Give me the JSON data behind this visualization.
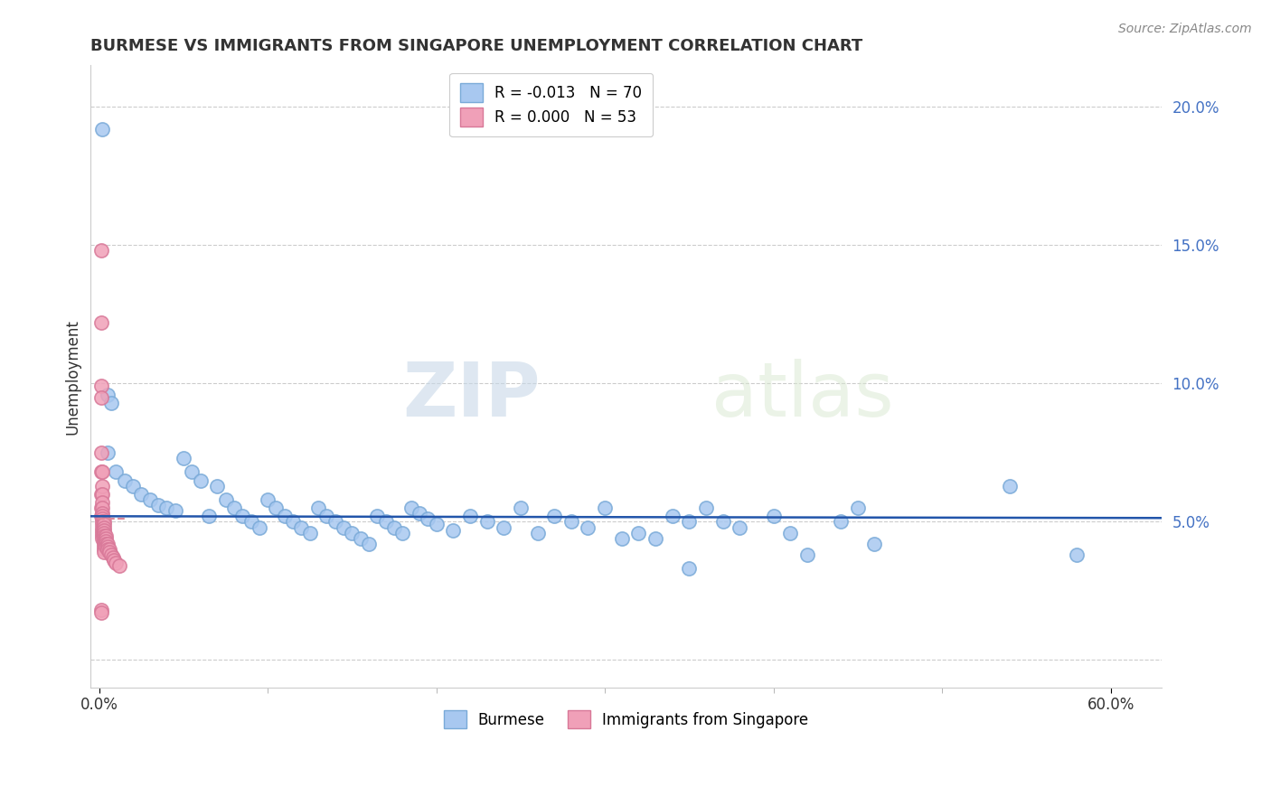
{
  "title": "BURMESE VS IMMIGRANTS FROM SINGAPORE UNEMPLOYMENT CORRELATION CHART",
  "source_text": "Source: ZipAtlas.com",
  "ylabel": "Unemployment",
  "y_ticks": [
    0.0,
    0.05,
    0.1,
    0.15,
    0.2
  ],
  "y_tick_labels": [
    "",
    "5.0%",
    "10.0%",
    "15.0%",
    "20.0%"
  ],
  "xlim": [
    -0.005,
    0.63
  ],
  "ylim": [
    -0.01,
    0.215
  ],
  "blue_color": "#A8C8F0",
  "blue_edge_color": "#7AAAD8",
  "pink_color": "#F0A0B8",
  "pink_edge_color": "#D87898",
  "blue_line_color": "#2255AA",
  "pink_line_color": "#DD8899",
  "legend_blue_label": "R = -0.013   N = 70",
  "legend_pink_label": "R = 0.000   N = 53",
  "legend_burmese": "Burmese",
  "legend_singapore": "Immigrants from Singapore",
  "watermark_zip": "ZIP",
  "watermark_atlas": "atlas",
  "blue_points": [
    [
      0.002,
      0.192
    ],
    [
      0.005,
      0.096
    ],
    [
      0.007,
      0.093
    ],
    [
      0.005,
      0.075
    ],
    [
      0.01,
      0.068
    ],
    [
      0.015,
      0.065
    ],
    [
      0.02,
      0.063
    ],
    [
      0.025,
      0.06
    ],
    [
      0.03,
      0.058
    ],
    [
      0.035,
      0.056
    ],
    [
      0.04,
      0.055
    ],
    [
      0.045,
      0.054
    ],
    [
      0.05,
      0.073
    ],
    [
      0.055,
      0.068
    ],
    [
      0.06,
      0.065
    ],
    [
      0.065,
      0.052
    ],
    [
      0.07,
      0.063
    ],
    [
      0.075,
      0.058
    ],
    [
      0.08,
      0.055
    ],
    [
      0.085,
      0.052
    ],
    [
      0.09,
      0.05
    ],
    [
      0.095,
      0.048
    ],
    [
      0.1,
      0.058
    ],
    [
      0.105,
      0.055
    ],
    [
      0.11,
      0.052
    ],
    [
      0.115,
      0.05
    ],
    [
      0.12,
      0.048
    ],
    [
      0.125,
      0.046
    ],
    [
      0.13,
      0.055
    ],
    [
      0.135,
      0.052
    ],
    [
      0.14,
      0.05
    ],
    [
      0.145,
      0.048
    ],
    [
      0.15,
      0.046
    ],
    [
      0.155,
      0.044
    ],
    [
      0.16,
      0.042
    ],
    [
      0.165,
      0.052
    ],
    [
      0.17,
      0.05
    ],
    [
      0.175,
      0.048
    ],
    [
      0.18,
      0.046
    ],
    [
      0.185,
      0.055
    ],
    [
      0.19,
      0.053
    ],
    [
      0.195,
      0.051
    ],
    [
      0.2,
      0.049
    ],
    [
      0.21,
      0.047
    ],
    [
      0.22,
      0.052
    ],
    [
      0.23,
      0.05
    ],
    [
      0.24,
      0.048
    ],
    [
      0.25,
      0.055
    ],
    [
      0.26,
      0.046
    ],
    [
      0.27,
      0.052
    ],
    [
      0.28,
      0.05
    ],
    [
      0.29,
      0.048
    ],
    [
      0.3,
      0.055
    ],
    [
      0.31,
      0.044
    ],
    [
      0.32,
      0.046
    ],
    [
      0.33,
      0.044
    ],
    [
      0.34,
      0.052
    ],
    [
      0.35,
      0.05
    ],
    [
      0.36,
      0.055
    ],
    [
      0.37,
      0.05
    ],
    [
      0.38,
      0.048
    ],
    [
      0.4,
      0.052
    ],
    [
      0.41,
      0.046
    ],
    [
      0.42,
      0.038
    ],
    [
      0.44,
      0.05
    ],
    [
      0.45,
      0.055
    ],
    [
      0.46,
      0.042
    ],
    [
      0.54,
      0.063
    ],
    [
      0.58,
      0.038
    ],
    [
      0.35,
      0.033
    ]
  ],
  "pink_points": [
    [
      0.001,
      0.148
    ],
    [
      0.001,
      0.122
    ],
    [
      0.001,
      0.099
    ],
    [
      0.001,
      0.095
    ],
    [
      0.001,
      0.075
    ],
    [
      0.001,
      0.068
    ],
    [
      0.001,
      0.06
    ],
    [
      0.001,
      0.055
    ],
    [
      0.001,
      0.052
    ],
    [
      0.002,
      0.068
    ],
    [
      0.002,
      0.063
    ],
    [
      0.002,
      0.06
    ],
    [
      0.002,
      0.057
    ],
    [
      0.002,
      0.055
    ],
    [
      0.002,
      0.053
    ],
    [
      0.002,
      0.052
    ],
    [
      0.002,
      0.051
    ],
    [
      0.002,
      0.05
    ],
    [
      0.002,
      0.049
    ],
    [
      0.002,
      0.048
    ],
    [
      0.002,
      0.047
    ],
    [
      0.002,
      0.046
    ],
    [
      0.002,
      0.045
    ],
    [
      0.002,
      0.044
    ],
    [
      0.003,
      0.05
    ],
    [
      0.003,
      0.049
    ],
    [
      0.003,
      0.048
    ],
    [
      0.003,
      0.047
    ],
    [
      0.003,
      0.046
    ],
    [
      0.003,
      0.045
    ],
    [
      0.003,
      0.044
    ],
    [
      0.003,
      0.043
    ],
    [
      0.003,
      0.042
    ],
    [
      0.003,
      0.041
    ],
    [
      0.003,
      0.04
    ],
    [
      0.003,
      0.039
    ],
    [
      0.004,
      0.045
    ],
    [
      0.004,
      0.044
    ],
    [
      0.004,
      0.043
    ],
    [
      0.004,
      0.042
    ],
    [
      0.004,
      0.041
    ],
    [
      0.005,
      0.042
    ],
    [
      0.005,
      0.041
    ],
    [
      0.005,
      0.04
    ],
    [
      0.006,
      0.04
    ],
    [
      0.006,
      0.039
    ],
    [
      0.007,
      0.038
    ],
    [
      0.008,
      0.037
    ],
    [
      0.009,
      0.036
    ],
    [
      0.01,
      0.035
    ],
    [
      0.012,
      0.034
    ],
    [
      0.001,
      0.018
    ],
    [
      0.001,
      0.017
    ]
  ]
}
